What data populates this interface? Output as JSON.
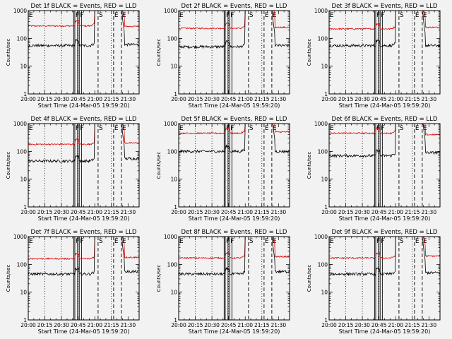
{
  "figure": {
    "background": "#f2f2f2",
    "ink": "#000000",
    "lld_color": "#dd0000"
  },
  "chart_data": {
    "type": "line",
    "yscale": "log",
    "ylim": [
      1,
      1000
    ],
    "yticks": [
      {
        "v": 1,
        "label": "1"
      },
      {
        "v": 10,
        "label": "10"
      },
      {
        "v": 100,
        "label": "100"
      },
      {
        "v": 1000,
        "label": "1000"
      }
    ],
    "xlim_min": [
      0,
      100
    ],
    "xticks": [
      {
        "m": 0,
        "label": "20:00"
      },
      {
        "m": 15,
        "label": "20:15"
      },
      {
        "m": 30,
        "label": "20:30"
      },
      {
        "m": 45,
        "label": "20:45"
      },
      {
        "m": 60,
        "label": "21:00"
      },
      {
        "m": 75,
        "label": "21:15"
      },
      {
        "m": 90,
        "label": "21:30"
      }
    ],
    "ylabel": "Counts/sec",
    "xlabel": "Start Time (24-Mar-05 19:59:20)",
    "dotted_lines_min": [
      15,
      30,
      45,
      75
    ],
    "markers": [
      {
        "type": "E",
        "m": 0,
        "style": "dashed"
      },
      {
        "type": "F",
        "m": 42,
        "style": "solid"
      },
      {
        "type": "F",
        "m": 46,
        "style": "solid"
      },
      {
        "type": "S",
        "m": 63,
        "style": "dashed"
      },
      {
        "type": "E",
        "m": 77,
        "style": "dashed"
      },
      {
        "type": "E",
        "m": 84,
        "style": "dashed"
      }
    ],
    "panels": [
      {
        "title": "Det 1f BLACK = Events, RED = LLD",
        "black": 55,
        "red": 280,
        "black_end": 60,
        "red_end": 270
      },
      {
        "title": "Det 2f BLACK = Events, RED = LLD",
        "black": 50,
        "red": 230,
        "black_end": 55,
        "red_end": 250
      },
      {
        "title": "Det 3f BLACK = Events, RED = LLD",
        "black": 55,
        "red": 220,
        "black_end": 55,
        "red_end": 250
      },
      {
        "title": "Det 4f BLACK = Events, RED = LLD",
        "black": 45,
        "red": 180,
        "black_end": 55,
        "red_end": 200
      },
      {
        "title": "Det 5f BLACK = Events, RED = LLD",
        "black": 100,
        "red": 450,
        "black_end": 100,
        "red_end": 500
      },
      {
        "title": "Det 6f BLACK = Events, RED = LLD",
        "black": 70,
        "red": 450,
        "black_end": 90,
        "red_end": 400
      },
      {
        "title": "Det 7f BLACK = Events, RED = LLD",
        "black": 45,
        "red": 160,
        "black_end": 55,
        "red_end": 180
      },
      {
        "title": "Det 8f BLACK = Events, RED = LLD",
        "black": 45,
        "red": 170,
        "black_end": 55,
        "red_end": 190
      },
      {
        "title": "Det 9f BLACK = Events, RED = LLD",
        "black": 45,
        "red": 170,
        "black_end": 50,
        "red_end": 200
      }
    ]
  }
}
